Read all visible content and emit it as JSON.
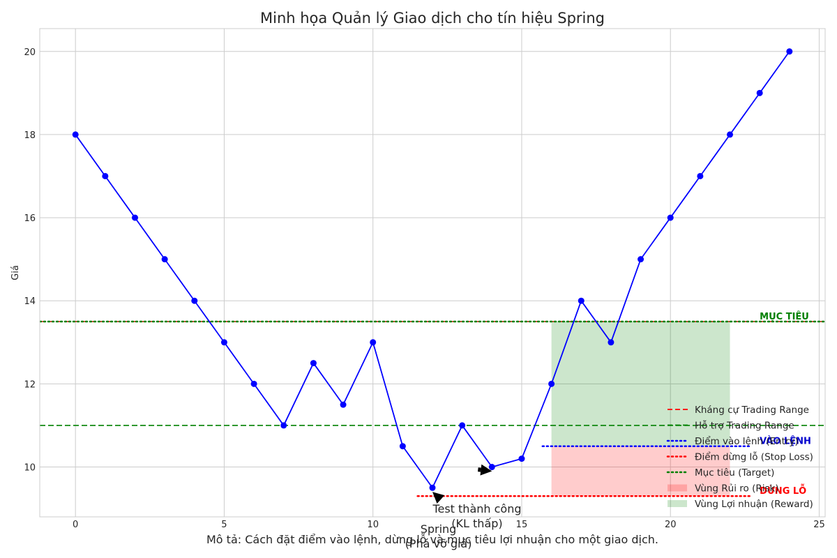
{
  "caption": "Mô tả: Cách đặt điểm vào lệnh, dừng lỗ và mục tiêu lợi nhuận cho một giao dịch.",
  "chart_data": {
    "type": "line",
    "title": "Minh họa Quản lý Giao dịch cho tín hiệu Spring",
    "xlabel": "",
    "ylabel": "Giá",
    "xlim": [
      -1.2,
      25.2
    ],
    "ylim": [
      8.8,
      20.55
    ],
    "xticks": [
      0,
      5,
      10,
      15,
      20,
      25
    ],
    "yticks": [
      10,
      12,
      14,
      16,
      18,
      20
    ],
    "grid": true,
    "legend_position": "lower-right",
    "series": [
      {
        "color": "#0000ff",
        "x": [
          0,
          1,
          2,
          3,
          4,
          5,
          6,
          7,
          8,
          9,
          10,
          11,
          12,
          13,
          14,
          15,
          16,
          17,
          18,
          19,
          20,
          21,
          22,
          23,
          24
        ],
        "values": [
          18,
          17,
          16,
          15,
          14,
          13,
          12,
          11,
          12.5,
          11.5,
          13,
          10.5,
          9.5,
          11,
          10,
          10.2,
          12,
          14,
          13,
          15,
          16,
          17,
          18,
          19,
          20
        ]
      }
    ],
    "horizontal_lines": [
      {
        "name": "Kháng cự Trading Range",
        "y": 13.5,
        "color": "#ff0000",
        "style": "dashed"
      },
      {
        "name": "Hỗ trợ Trading Range",
        "y": 11.0,
        "color": "#008000",
        "style": "dashed"
      },
      {
        "name": "Điểm vào lệnh (Entry)",
        "y": 10.5,
        "x_range": [
          15.7,
          22.7
        ],
        "color": "#0000ff",
        "style": "dotted",
        "label": "VÀO LỆNH"
      },
      {
        "name": "Điểm dừng lỗ (Stop Loss)",
        "y": 9.3,
        "x_range": [
          11.5,
          22.7
        ],
        "color": "#ff0000",
        "style": "dotted",
        "label": "DỪNG LỖ"
      },
      {
        "name": "Mục tiêu (Target)",
        "y": 13.5,
        "color": "#008000",
        "style": "dotted",
        "label": "MỤC TIÊU"
      }
    ],
    "regions": [
      {
        "name": "Vùng Rủi ro (Risk)",
        "x_range": [
          16,
          22
        ],
        "y_range": [
          9.3,
          10.5
        ],
        "color": "#ff0000",
        "opacity": 0.2
      },
      {
        "name": "Vùng Lợi nhuận (Reward)",
        "x_range": [
          16,
          22
        ],
        "y_range": [
          10.5,
          13.5
        ],
        "color": "#008000",
        "opacity": 0.2
      }
    ],
    "annotations": [
      {
        "text": [
          "Spring",
          "(Phá vỡ giả)"
        ],
        "point": [
          12,
          9.5
        ],
        "text_pos": [
          12.2,
          8.1
        ]
      },
      {
        "text": [
          "Test thành công",
          "(KL thấp)"
        ],
        "point": [
          14,
          10
        ],
        "text_pos": [
          13.5,
          9.2
        ]
      }
    ],
    "label_colors": {
      "VÀO LỆNH": "#0000cd",
      "DỪNG LỖ": "#ff0000",
      "MỤC TIÊU": "#008000"
    }
  }
}
